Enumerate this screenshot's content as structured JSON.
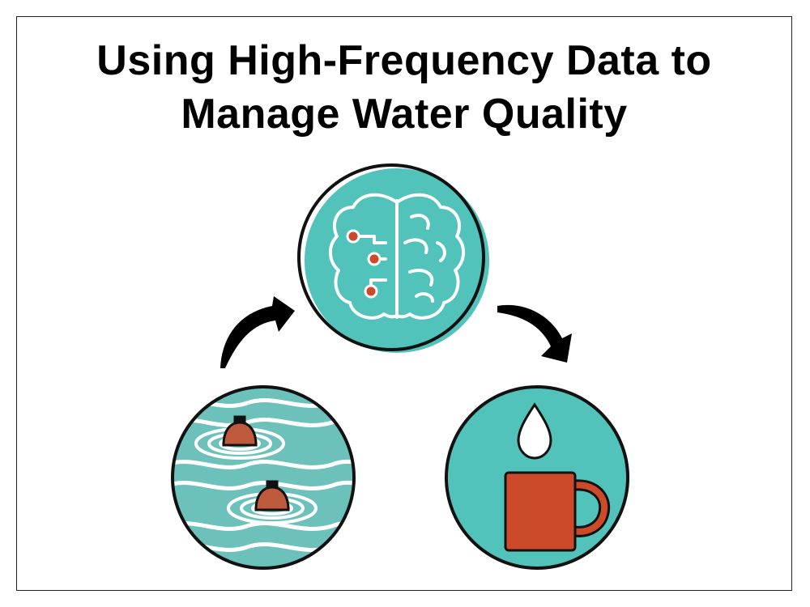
{
  "slide": {
    "title_line1": "Using High-Frequency Data to",
    "title_line2": "Manage Water Quality"
  },
  "colors": {
    "teal": "#52c3bb",
    "dark_teal": "#2a9f98",
    "orange_red": "#cc4a2a",
    "brown_buoy": "#bf5a3c",
    "outline": "#111111"
  },
  "icons": [
    "brain-circuit-icon",
    "water-buoys-icon",
    "mug-water-drop-icon",
    "curved-arrow-up-icon",
    "curved-arrow-down-icon"
  ]
}
